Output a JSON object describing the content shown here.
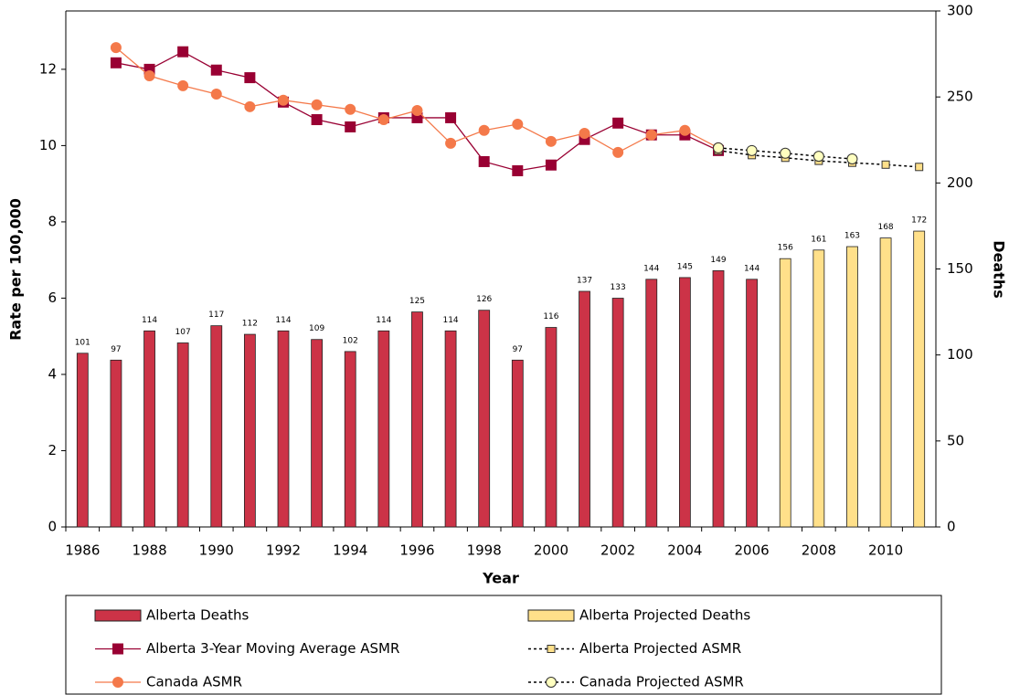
{
  "chart_data": {
    "type": "bar",
    "x_label": "Year",
    "y_label": "Rate per 100,000",
    "y2_label": "Deaths",
    "categories": [
      "1986",
      null,
      "1988",
      null,
      "1990",
      null,
      "1992",
      null,
      "1994",
      null,
      "1996",
      null,
      "1998",
      null,
      "2000",
      null,
      "2002",
      null,
      "2004",
      null,
      "2006",
      null,
      "2008",
      null,
      "2010",
      null
    ],
    "ylim": [
      0,
      13.53
    ],
    "yticks": [
      0,
      2,
      4,
      6,
      8,
      10,
      12
    ],
    "y2lim": [
      0,
      300
    ],
    "y2ticks": [
      0,
      50,
      100,
      150,
      200,
      250,
      300
    ],
    "legend": "bottom",
    "series": [
      {
        "name": "Alberta Deaths",
        "type": "bar",
        "axis": "y2",
        "color": "#cc3347",
        "values": [
          101,
          97,
          114,
          107,
          117,
          112,
          114,
          109,
          102,
          114,
          125,
          114,
          126,
          97,
          116,
          137,
          133,
          144,
          145,
          149,
          144,
          null,
          null,
          null,
          null,
          null
        ]
      },
      {
        "name": "Alberta Projected Deaths",
        "type": "bar",
        "axis": "y2",
        "color": "#ffe08a",
        "values": [
          null,
          null,
          null,
          null,
          null,
          null,
          null,
          null,
          null,
          null,
          null,
          null,
          null,
          null,
          null,
          null,
          null,
          null,
          null,
          null,
          null,
          156,
          161,
          163,
          168,
          172
        ]
      },
      {
        "name": "Alberta 3-Year Moving Average ASMR",
        "type": "line",
        "color": "#990033",
        "marker": "square",
        "dash": false,
        "values": [
          null,
          12.17,
          12.0,
          12.46,
          11.98,
          11.78,
          11.14,
          10.68,
          10.49,
          10.73,
          10.73,
          10.73,
          9.58,
          9.34,
          9.49,
          10.16,
          10.59,
          10.28,
          10.28,
          9.87,
          null,
          null,
          null,
          null,
          null,
          null
        ]
      },
      {
        "name": "Alberta Projected ASMR",
        "type": "line",
        "color": "#ffe08a",
        "marker": "square",
        "dash": true,
        "values": [
          null,
          null,
          null,
          null,
          null,
          null,
          null,
          null,
          null,
          null,
          null,
          null,
          null,
          null,
          null,
          null,
          null,
          null,
          null,
          9.87,
          9.75,
          9.68,
          9.6,
          9.55,
          9.5,
          9.44
        ]
      },
      {
        "name": "Canada ASMR",
        "type": "line",
        "color": "#f4794a",
        "marker": "circle",
        "dash": false,
        "values": [
          null,
          12.57,
          11.83,
          11.57,
          11.35,
          11.02,
          11.19,
          11.07,
          10.95,
          10.68,
          10.92,
          10.06,
          10.4,
          10.56,
          10.11,
          10.32,
          9.82,
          10.28,
          10.4,
          9.94,
          null,
          null,
          null,
          null,
          null,
          null
        ]
      },
      {
        "name": "Canada Projected ASMR",
        "type": "line",
        "color": "#ffffc0",
        "marker": "circle",
        "dash": true,
        "values": [
          null,
          null,
          null,
          null,
          null,
          null,
          null,
          null,
          null,
          null,
          null,
          null,
          null,
          null,
          null,
          null,
          null,
          null,
          null,
          9.94,
          9.87,
          9.8,
          9.72,
          9.65,
          null,
          null
        ]
      }
    ]
  }
}
